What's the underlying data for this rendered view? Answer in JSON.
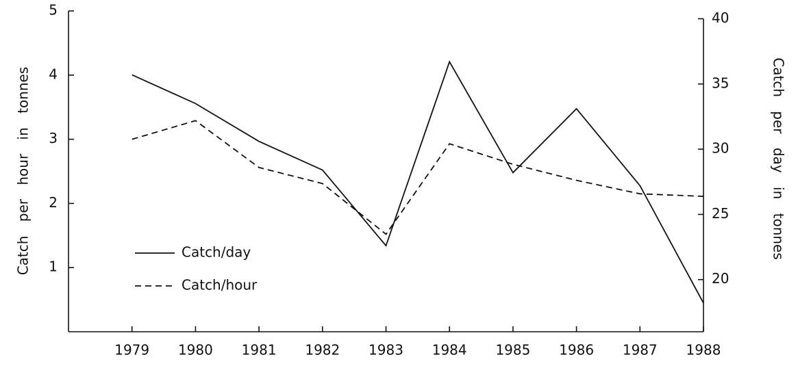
{
  "chart_data": {
    "type": "line",
    "y_label": "Catch per hour in tonnes",
    "y2_label": "Catch per day in tonnes",
    "x": [
      1979,
      1980,
      1981,
      1982,
      1983,
      1984,
      1985,
      1986,
      1987,
      1988
    ],
    "xlim": [
      1978,
      1988
    ],
    "xticks": [
      1979,
      1980,
      1981,
      1982,
      1983,
      1984,
      1985,
      1986,
      1987,
      1988
    ],
    "ylim": [
      0,
      5
    ],
    "yticks": [
      1,
      2,
      3,
      4,
      5
    ],
    "y2lim": [
      16,
      40.6
    ],
    "y2ticks": [
      20,
      25,
      30,
      35,
      40
    ],
    "legend": "lower left",
    "series": [
      {
        "name": "Catch/day",
        "color": "#111111",
        "dash": "solid",
        "axis": "y2",
        "values": [
          35.7,
          33.5,
          30.6,
          28.4,
          22.6,
          36.7,
          28.2,
          33.1,
          27.2,
          18.2
        ]
      },
      {
        "name": "Catch/hour",
        "color": "#111111",
        "dash": "dashed",
        "axis": "y",
        "values": [
          3.0,
          3.29,
          2.56,
          2.31,
          1.52,
          2.93,
          2.61,
          2.36,
          2.15,
          2.11
        ]
      }
    ]
  }
}
